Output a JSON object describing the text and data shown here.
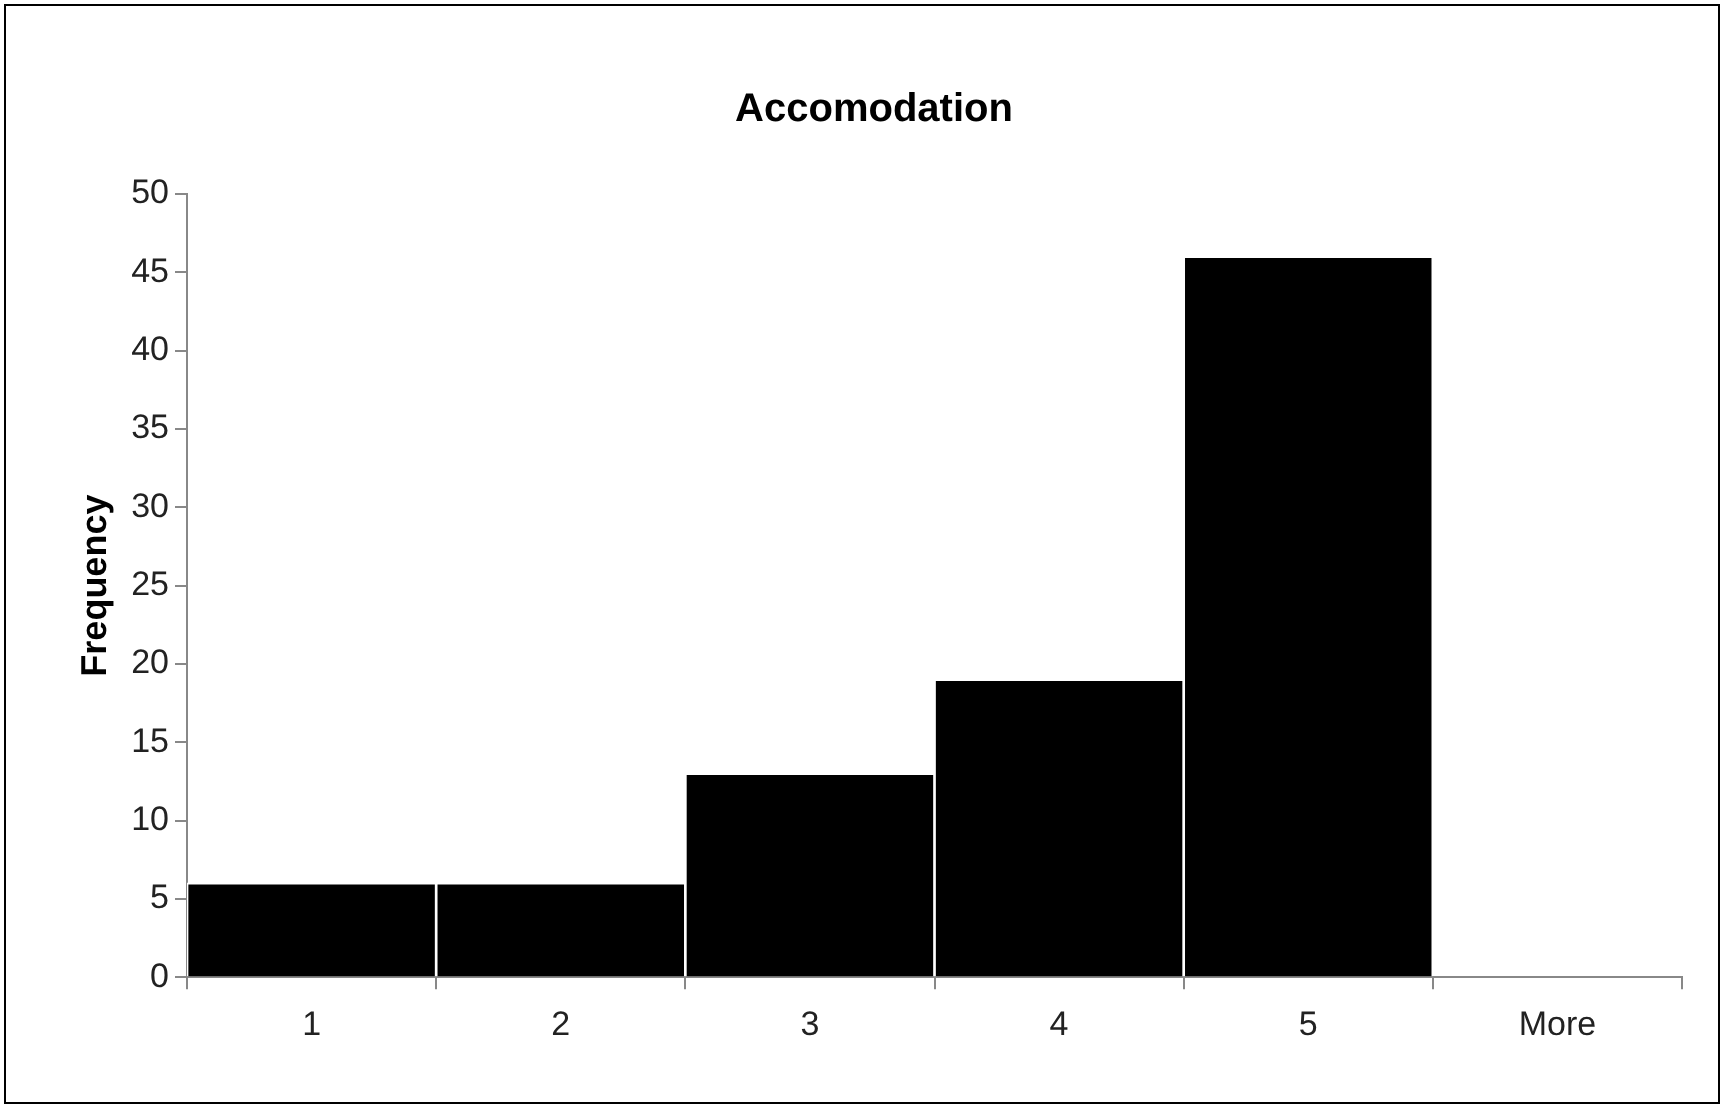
{
  "chart_data": {
    "type": "bar",
    "title": "Accomodation",
    "ylabel": "Frequency",
    "categories": [
      "1",
      "2",
      "3",
      "4",
      "5",
      "More"
    ],
    "values": [
      6,
      6,
      13,
      19,
      46,
      0
    ],
    "color": "#000000",
    "ylim": [
      0,
      50
    ],
    "yticks": [
      0,
      5,
      10,
      15,
      20,
      25,
      30,
      35,
      40,
      45,
      50
    ],
    "grid": false,
    "legend": false
  }
}
